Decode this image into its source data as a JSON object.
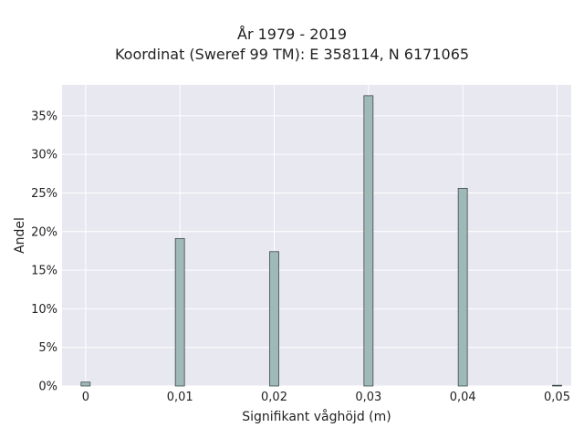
{
  "chart_data": {
    "type": "bar",
    "title": "År 1979 - 2019",
    "subtitle": "Koordinat (Sweref 99 TM): E 358114, N 6171065",
    "xlabel": "Signifikant våghöjd (m)",
    "ylabel": "Andel",
    "x": [
      0,
      0.01,
      0.02,
      0.03,
      0.04,
      0.05
    ],
    "values": [
      0.5,
      19.1,
      17.4,
      37.6,
      25.6,
      0.05
    ],
    "xlim": [
      -0.0025,
      0.0515
    ],
    "ylim": [
      0,
      39
    ],
    "xticks": [
      0,
      0.01,
      0.02,
      0.03,
      0.04,
      0.05
    ],
    "xtick_labels": [
      "0",
      "0,01",
      "0,02",
      "0,03",
      "0,04",
      "0,05"
    ],
    "yticks": [
      0,
      5,
      10,
      15,
      20,
      25,
      30,
      35
    ],
    "ytick_labels": [
      "0%",
      "5%",
      "10%",
      "15%",
      "20%",
      "25%",
      "30%",
      "35%"
    ],
    "grid": true,
    "colors": {
      "bar": "#9fb8b8",
      "bar_edge": "#3d4a4a",
      "plot_bg": "#e8e8f0",
      "grid": "#ffffff"
    }
  }
}
